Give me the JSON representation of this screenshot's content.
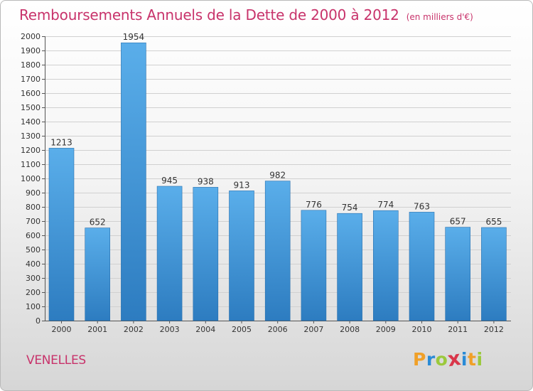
{
  "header": {
    "title": "Remboursements Annuels de la Dette de 2000 à 2012",
    "subtitle": "(en milliers d'€)"
  },
  "footer": {
    "town": "VENELLES",
    "logo_letters": [
      "P",
      "r",
      "o",
      "x",
      "i",
      "t",
      "i"
    ],
    "logo_colors": [
      "#f0a028",
      "#2a8bd6",
      "#9bc93c",
      "#d9364a",
      "#2a8bd6",
      "#f0a028",
      "#9bc93c"
    ]
  },
  "colors": {
    "bar_top": "#5aaeea",
    "bar_bottom": "#2d7cc0",
    "title": "#c8336b"
  },
  "chart_data": {
    "type": "bar",
    "categories": [
      "2000",
      "2001",
      "2002",
      "2003",
      "2004",
      "2005",
      "2006",
      "2007",
      "2008",
      "2009",
      "2010",
      "2011",
      "2012"
    ],
    "values": [
      1213,
      652,
      1954,
      945,
      938,
      913,
      982,
      776,
      754,
      774,
      763,
      657,
      655
    ],
    "value_labels": [
      "1213",
      "652",
      "1954",
      "945",
      "938",
      "913",
      "982",
      "776",
      "754",
      "774",
      "763",
      "657",
      "655"
    ],
    "ylim": [
      0,
      2000
    ],
    "yticks": [
      0,
      100,
      200,
      300,
      400,
      500,
      600,
      700,
      800,
      900,
      1000,
      1100,
      1200,
      1300,
      1400,
      1500,
      1600,
      1700,
      1800,
      1900,
      2000
    ],
    "ytick_labels": [
      "0",
      "100",
      "200",
      "300",
      "400",
      "500",
      "600",
      "700",
      "800",
      "900",
      "1000",
      "1100",
      "1200",
      "1300",
      "1400",
      "1500",
      "1600",
      "1700",
      "1800",
      "1900",
      "2000"
    ],
    "grid": true,
    "xlabel": "",
    "ylabel": ""
  }
}
